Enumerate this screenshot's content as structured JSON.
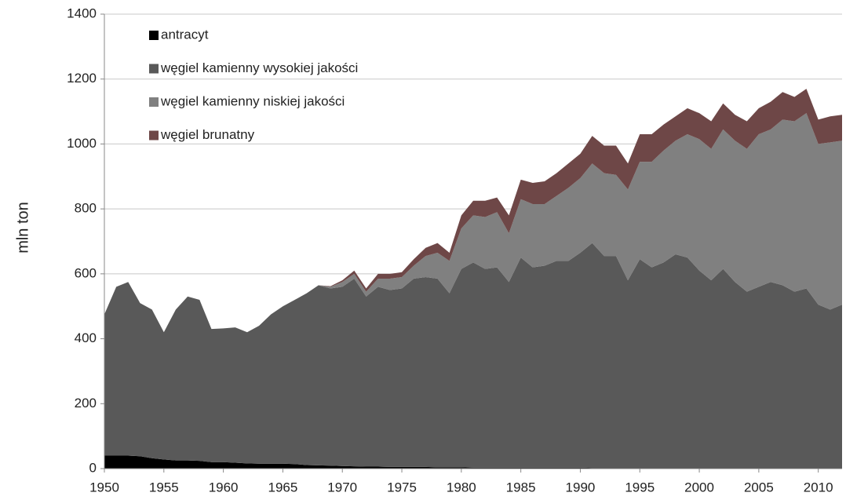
{
  "chart_data": {
    "type": "stacked-area",
    "y_label": "mln ton",
    "x": [
      1950,
      1951,
      1952,
      1953,
      1954,
      1955,
      1956,
      1957,
      1958,
      1959,
      1960,
      1961,
      1962,
      1963,
      1964,
      1965,
      1966,
      1967,
      1968,
      1969,
      1970,
      1971,
      1972,
      1973,
      1974,
      1975,
      1976,
      1977,
      1978,
      1979,
      1980,
      1981,
      1982,
      1983,
      1984,
      1985,
      1986,
      1987,
      1988,
      1989,
      1990,
      1991,
      1992,
      1993,
      1994,
      1995,
      1996,
      1997,
      1998,
      1999,
      2000,
      2001,
      2002,
      2003,
      2004,
      2005,
      2006,
      2007,
      2008,
      2009,
      2010,
      2011,
      2012
    ],
    "series": [
      {
        "name": "antracyt",
        "color": "#000000",
        "values": [
          40,
          40,
          40,
          38,
          32,
          28,
          25,
          25,
          24,
          20,
          20,
          18,
          16,
          15,
          15,
          15,
          14,
          11,
          10,
          9,
          8,
          7,
          6,
          6,
          5,
          5,
          5,
          5,
          4,
          4,
          4,
          3,
          3,
          3,
          3,
          3,
          3,
          3,
          3,
          3,
          3,
          2,
          2,
          2,
          2,
          2,
          2,
          2,
          2,
          2,
          2,
          2,
          2,
          2,
          2,
          2,
          2,
          2,
          2,
          2,
          2,
          2,
          2
        ]
      },
      {
        "name": "węgiel kamienny wysokiej jakości",
        "color": "#595959",
        "values": [
          435,
          520,
          535,
          472,
          458,
          392,
          465,
          505,
          496,
          410,
          412,
          417,
          404,
          425,
          460,
          485,
          506,
          529,
          555,
          546,
          552,
          578,
          524,
          554,
          545,
          550,
          580,
          585,
          581,
          536,
          611,
          632,
          612,
          617,
          572,
          647,
          617,
          622,
          637,
          637,
          662,
          693,
          653,
          653,
          578,
          643,
          618,
          633,
          658,
          648,
          608,
          578,
          613,
          573,
          543,
          558,
          573,
          563,
          543,
          553,
          503,
          488,
          503
        ]
      },
      {
        "name": "węgiel kamienny niskiej jakości",
        "color": "#808080",
        "values": [
          0,
          0,
          0,
          0,
          0,
          0,
          0,
          0,
          0,
          0,
          0,
          0,
          0,
          0,
          0,
          0,
          0,
          0,
          0,
          5,
          15,
          15,
          15,
          25,
          35,
          35,
          40,
          65,
          80,
          100,
          125,
          145,
          160,
          170,
          150,
          180,
          195,
          190,
          200,
          225,
          230,
          245,
          255,
          250,
          280,
          300,
          325,
          345,
          350,
          380,
          405,
          405,
          430,
          435,
          440,
          470,
          470,
          510,
          525,
          540,
          495,
          515,
          505
        ]
      },
      {
        "name": "węgiel brunatny",
        "color": "#6e4747",
        "values": [
          0,
          0,
          0,
          0,
          0,
          0,
          0,
          0,
          0,
          0,
          0,
          0,
          0,
          0,
          0,
          0,
          0,
          0,
          0,
          2,
          5,
          10,
          10,
          15,
          15,
          15,
          20,
          25,
          30,
          25,
          40,
          45,
          50,
          45,
          55,
          60,
          65,
          70,
          70,
          75,
          75,
          85,
          85,
          90,
          80,
          85,
          85,
          80,
          75,
          80,
          80,
          85,
          80,
          80,
          85,
          80,
          85,
          85,
          75,
          75,
          75,
          80,
          80
        ]
      }
    ],
    "xlim": [
      1950,
      2012
    ],
    "xticks": [
      1950,
      1955,
      1960,
      1965,
      1970,
      1975,
      1980,
      1985,
      1990,
      1995,
      2000,
      2005,
      2010
    ],
    "ylim": [
      0,
      1400
    ],
    "yticks": [
      0,
      200,
      400,
      600,
      800,
      1000,
      1200,
      1400
    ],
    "grid": true,
    "legend": "upper left"
  }
}
